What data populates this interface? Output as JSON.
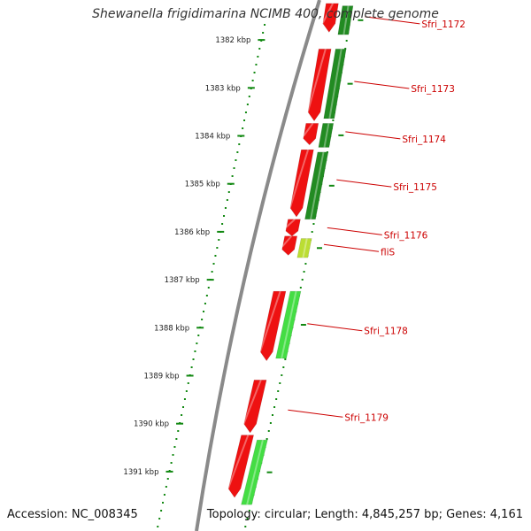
{
  "title": "Shewanella frigidimarina NCIMB 400, complete genome",
  "footer": {
    "accession": "Accession: NC_008345",
    "summary": "Topology: circular; Length: 4,845,257 bp; Genes: 4,161"
  },
  "colors": {
    "backbone": "#8a8a8a",
    "ruler_dots": "#118811",
    "reverse_strand": "#ee1111",
    "forward_strand_dark": "#228b22",
    "forward_strand_light": "#44dd44",
    "flis": "#bbdd33",
    "label_text": "#cc0000",
    "label_line": "#cc0000"
  },
  "ruler": {
    "unit": "kbp",
    "ticks": [
      {
        "kbp": 1382,
        "label": "1382 kbp"
      },
      {
        "kbp": 1383,
        "label": "1383 kbp"
      },
      {
        "kbp": 1384,
        "label": "1384 kbp"
      },
      {
        "kbp": 1385,
        "label": "1385 kbp"
      },
      {
        "kbp": 1386,
        "label": "1386 kbp"
      },
      {
        "kbp": 1387,
        "label": "1387 kbp"
      },
      {
        "kbp": 1388,
        "label": "1388 kbp"
      },
      {
        "kbp": 1389,
        "label": "1389 kbp"
      },
      {
        "kbp": 1390,
        "label": "1390 kbp"
      },
      {
        "kbp": 1391,
        "label": "1391 kbp"
      }
    ]
  },
  "genes": [
    {
      "name": "Sfri_1172",
      "strand": "-",
      "start_kbp": 1381.35,
      "end_kbp": 1381.95,
      "shade": "red"
    },
    {
      "name": "Sfri_1172",
      "strand": "+",
      "start_kbp": 1381.4,
      "end_kbp": 1382.0,
      "shade": "dark"
    },
    {
      "name": "Sfri_1173",
      "strand": "-",
      "start_kbp": 1382.3,
      "end_kbp": 1383.8,
      "shade": "red"
    },
    {
      "name": "Sfri_1173",
      "strand": "+",
      "start_kbp": 1382.3,
      "end_kbp": 1383.75,
      "shade": "dark"
    },
    {
      "name": "Sfri_1174",
      "strand": "-",
      "start_kbp": 1383.85,
      "end_kbp": 1384.3,
      "shade": "red"
    },
    {
      "name": "Sfri_1174",
      "strand": "+",
      "start_kbp": 1383.85,
      "end_kbp": 1384.35,
      "shade": "dark"
    },
    {
      "name": "Sfri_1175",
      "strand": "-",
      "start_kbp": 1384.4,
      "end_kbp": 1385.8,
      "shade": "red"
    },
    {
      "name": "Sfri_1175",
      "strand": "+",
      "start_kbp": 1384.45,
      "end_kbp": 1385.85,
      "shade": "dark"
    },
    {
      "name": "Sfri_1176",
      "strand": "-",
      "start_kbp": 1385.85,
      "end_kbp": 1386.2,
      "shade": "red"
    },
    {
      "name": "Sfri_1176",
      "strand": "-",
      "start_kbp": 1386.2,
      "end_kbp": 1386.6,
      "shade": "red"
    },
    {
      "name": "fliS",
      "strand": "+",
      "start_kbp": 1386.25,
      "end_kbp": 1386.65,
      "shade": "flis"
    },
    {
      "name": "Sfri_1178",
      "strand": "-",
      "start_kbp": 1387.35,
      "end_kbp": 1388.8,
      "shade": "red"
    },
    {
      "name": "Sfri_1178",
      "strand": "+",
      "start_kbp": 1387.35,
      "end_kbp": 1388.75,
      "shade": "light"
    },
    {
      "name": "Sfri_1179",
      "strand": "-",
      "start_kbp": 1389.2,
      "end_kbp": 1390.3,
      "shade": "red"
    },
    {
      "name": "Sfri_1179",
      "strand": "-",
      "start_kbp": 1390.35,
      "end_kbp": 1391.65,
      "shade": "red"
    },
    {
      "name": "Sfri_1179",
      "strand": "+",
      "start_kbp": 1390.45,
      "end_kbp": 1391.8,
      "shade": "light"
    }
  ],
  "labels": [
    {
      "text": "Sfri_1172",
      "kbp": 1381.7
    },
    {
      "text": "Sfri_1173",
      "kbp": 1383.05
    },
    {
      "text": "Sfri_1174",
      "kbp": 1384.1
    },
    {
      "text": "Sfri_1175",
      "kbp": 1385.1
    },
    {
      "text": "Sfri_1176",
      "kbp": 1386.1
    },
    {
      "text": "fliS",
      "kbp": 1386.45
    },
    {
      "text": "Sfri_1178",
      "kbp": 1388.1
    },
    {
      "text": "Sfri_1179",
      "kbp": 1389.9
    }
  ]
}
